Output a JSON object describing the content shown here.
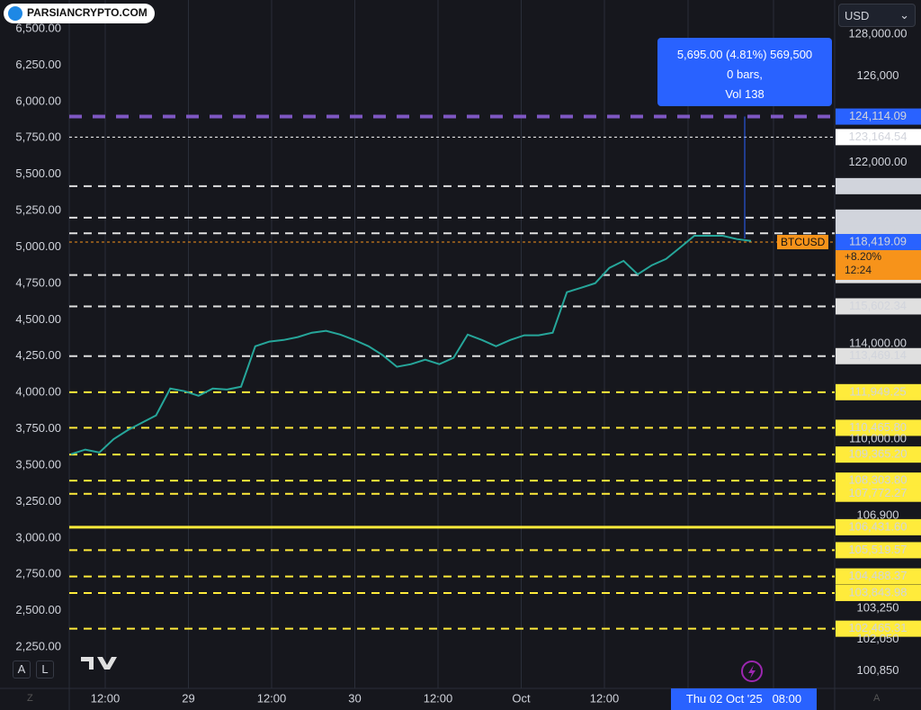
{
  "logo": "PARSIANCRYPTO.COM",
  "currency": "USD",
  "buttons": [
    "A",
    "L"
  ],
  "corner_left": "Z",
  "corner_right": "A",
  "chart_data": {
    "type": "line",
    "symbol": "BTCUSD",
    "change": "+8.20%",
    "countdown": "12:24",
    "crosshair_label": "Thu 02 Oct '25   08:00",
    "tooltip": [
      "5,695.00 (4.81%) 569,500",
      "0 bars,",
      "Vol 138"
    ],
    "x_labels": [
      "12:00",
      "29",
      "12:00",
      "30",
      "12:00",
      "Oct",
      "12:00"
    ],
    "grid": "vertical",
    "log_scale": true,
    "ylim": [
      100200,
      129650
    ],
    "yticks": [
      {
        "value": 128000,
        "label": "128,000.00"
      },
      {
        "value": 126000,
        "label": "126,000"
      },
      {
        "value": 122000,
        "label": "122,000.00"
      },
      {
        "value": 114000,
        "label": "114,000.00"
      },
      {
        "value": 110000,
        "label": "110,000.00"
      },
      {
        "value": 106900,
        "label": "106,900"
      },
      {
        "value": 103250,
        "label": "103,250"
      },
      {
        "value": 102050,
        "label": "102,050"
      },
      {
        "value": 100850,
        "label": "100,850"
      }
    ],
    "y2lim": [
      1966,
      6698
    ],
    "y2ticks": [
      {
        "value": 6500,
        "label": "6,500.00"
      },
      {
        "value": 6250,
        "label": "6,250.00"
      },
      {
        "value": 6000,
        "label": "6,000.00"
      },
      {
        "value": 5750,
        "label": "5,750.00"
      },
      {
        "value": 5500,
        "label": "5,500.00"
      },
      {
        "value": 5250,
        "label": "5,250.00"
      },
      {
        "value": 5000,
        "label": "5,000.00"
      },
      {
        "value": 4750,
        "label": "4,750.00"
      },
      {
        "value": 4500,
        "label": "4,500.00"
      },
      {
        "value": 4250,
        "label": "4,250.00"
      },
      {
        "value": 4000,
        "label": "4,000.00"
      },
      {
        "value": 3750,
        "label": "3,750.00"
      },
      {
        "value": 3500,
        "label": "3,500.00"
      },
      {
        "value": 3250,
        "label": "3,250.00"
      },
      {
        "value": 3000,
        "label": "3,000.00"
      },
      {
        "value": 2750,
        "label": "2,750.00"
      },
      {
        "value": 2500,
        "label": "2,500.00"
      },
      {
        "value": 2250,
        "label": "2,250.00"
      }
    ],
    "series": [
      {
        "name": "BTCUSD",
        "color": "#26a69a",
        "values": [
          109380,
          109570,
          109450,
          110000,
          110370,
          110680,
          110980,
          112100,
          111990,
          111800,
          112100,
          112060,
          112180,
          113890,
          114090,
          114160,
          114280,
          114470,
          114550,
          114390,
          114160,
          113890,
          113510,
          113020,
          113130,
          113320,
          113130,
          113400,
          114390,
          114160,
          113890,
          114160,
          114360,
          114360,
          114470,
          116220,
          116410,
          116610,
          117280,
          117590,
          117000,
          117400,
          117670,
          118180,
          118700,
          118700,
          118700,
          118550,
          118470
        ]
      }
    ],
    "levels": [
      {
        "value": 124114.09,
        "label": "124,114.09",
        "color": "#7e57c2",
        "style": "thick",
        "tag_color": "#2962ff"
      },
      {
        "value": 123164.54,
        "label": "123,164.54",
        "color": "#ffffff",
        "style": "dotted",
        "tag_color": "#ffffff"
      },
      {
        "value": 120923.78,
        "label": "120,923.78",
        "color": "#e0e0e0",
        "style": "dashed",
        "tag_color": "#d1d4dc"
      },
      {
        "value": 119508.75,
        "label": "119,508.75",
        "color": "#e0e0e0",
        "style": "dashed",
        "tag_color": "#d1d4dc"
      },
      {
        "value": 118810.87,
        "label": "118,810.87",
        "color": "#e0e0e0",
        "style": "dashed",
        "tag_color": "#d1d4dc"
      },
      {
        "value": 118419.09,
        "label": "118,419.09",
        "color": "#f7931a",
        "style": "dotted",
        "tag_color": "#2962ff"
      },
      {
        "value": 116965.92,
        "label": "116,965.92",
        "color": "#e0e0e0",
        "style": "dashed",
        "tag_color": "#e0e0e0"
      },
      {
        "value": 115602.34,
        "label": "115,602.34",
        "color": "#e0e0e0",
        "style": "dashed",
        "tag_color": "#e0e0e0"
      },
      {
        "value": 113469.14,
        "label": "113,469.14",
        "color": "#e0e0e0",
        "style": "dashed",
        "tag_color": "#e0e0e0"
      },
      {
        "value": 111949.25,
        "label": "111,949.25",
        "color": "#ffeb3b",
        "style": "dashed",
        "tag_color": "#ffeb3b"
      },
      {
        "value": 110465.8,
        "label": "110,465.80",
        "color": "#ffeb3b",
        "style": "dashed",
        "tag_color": "#ffeb3b"
      },
      {
        "value": 109365.2,
        "label": "109,365.20",
        "color": "#ffeb3b",
        "style": "dashed",
        "tag_color": "#ffeb3b"
      },
      {
        "value": 108303.8,
        "label": "108,303.80",
        "color": "#ffeb3b",
        "style": "dashed",
        "tag_color": "#ffeb3b"
      },
      {
        "value": 107772.27,
        "label": "107,772.27",
        "color": "#ffeb3b",
        "style": "dashed",
        "tag_color": "#ffeb3b"
      },
      {
        "value": 106431.6,
        "label": "106,431.60",
        "color": "#ffeb3b",
        "style": "solid",
        "tag_color": "#ffeb3b"
      },
      {
        "value": 105519.57,
        "label": "105,519.57",
        "color": "#ffeb3b",
        "style": "dashed",
        "tag_color": "#ffeb3b"
      },
      {
        "value": 104488.37,
        "label": "104,488.37",
        "color": "#ffeb3b",
        "style": "dashed",
        "tag_color": "#ffeb3b"
      },
      {
        "value": 103843.98,
        "label": "103,843.98",
        "color": "#ffeb3b",
        "style": "dashed",
        "tag_color": "#ffeb3b"
      },
      {
        "value": 102465.31,
        "label": "102,465.31",
        "color": "#ffeb3b",
        "style": "dashed",
        "tag_color": "#ffeb3b"
      }
    ]
  }
}
